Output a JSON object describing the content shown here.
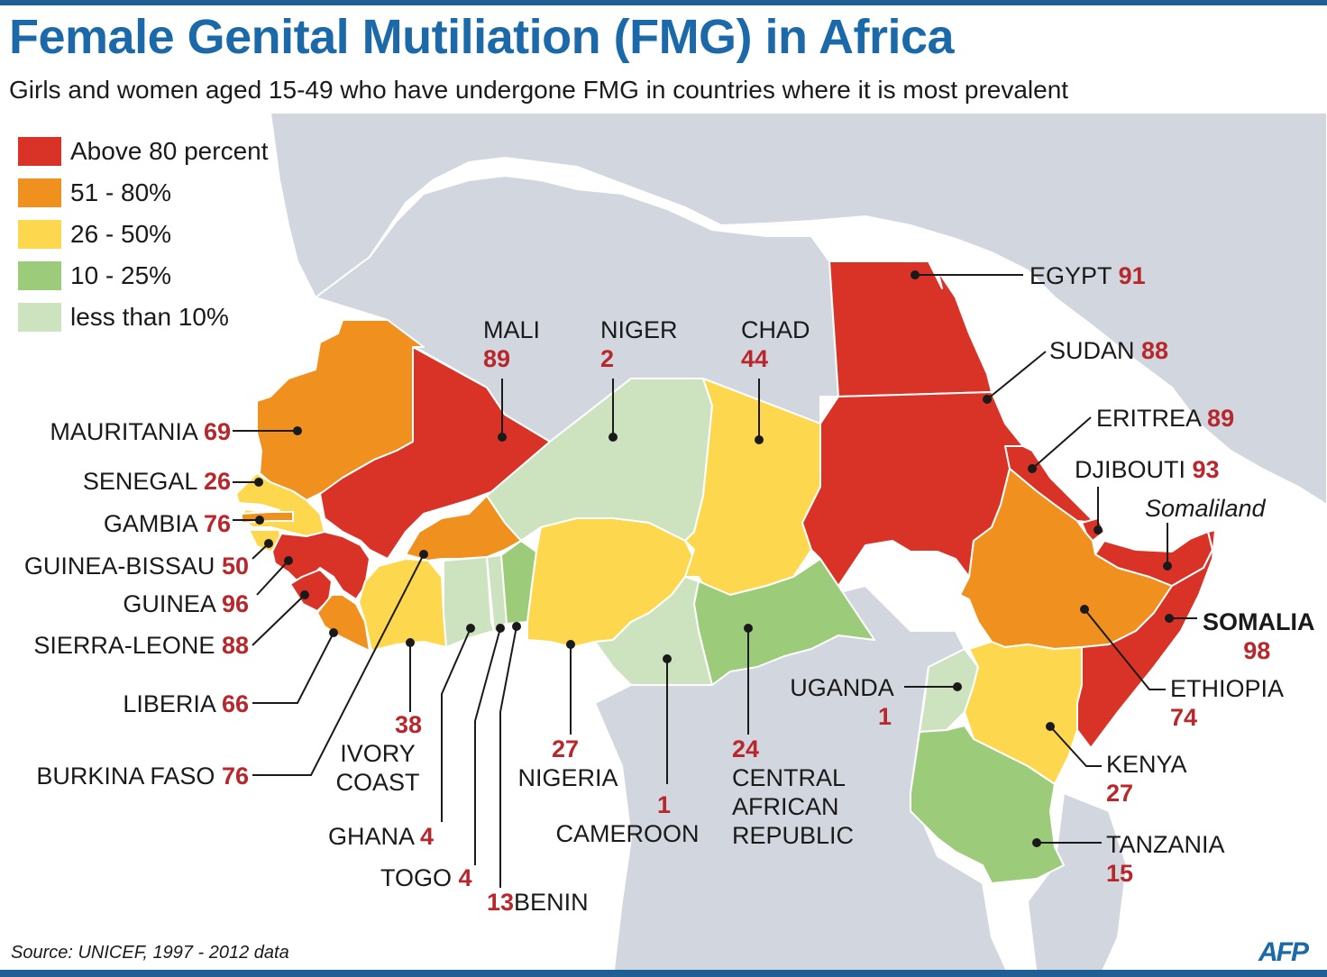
{
  "title": "Female Genital Mutiliation (FMG) in Africa",
  "subtitle": "Girls and women aged 15-49 who have undergone FMG in countries where it is most prevalent",
  "legend": [
    {
      "label": "Above 80 percent",
      "color": "#d93327"
    },
    {
      "label": "51 - 80%",
      "color": "#f0901e"
    },
    {
      "label": "26 - 50%",
      "color": "#fdd84e"
    },
    {
      "label": "10 - 25%",
      "color": "#9ccb7a"
    },
    {
      "label": "less than 10%",
      "color": "#cde3bf"
    }
  ],
  "colors": {
    "ocean": "#ffffff",
    "land": "#d2d7df",
    "border": "#ffffff",
    "value": "#b8272b",
    "title": "#1b69a8"
  },
  "countries": {
    "egypt": {
      "name": "EGYPT",
      "value": "91"
    },
    "sudan": {
      "name": "SUDAN",
      "value": "88"
    },
    "eritrea": {
      "name": "ERITREA",
      "value": "89"
    },
    "djibouti": {
      "name": "DJIBOUTI",
      "value": "93"
    },
    "somaliland": {
      "name": "Somaliland"
    },
    "somalia": {
      "name": "SOMALIA",
      "value": "98"
    },
    "ethiopia": {
      "name": "ETHIOPIA",
      "value": "74"
    },
    "kenya": {
      "name": "KENYA",
      "value": "27"
    },
    "tanzania": {
      "name": "TANZANIA",
      "value": "15"
    },
    "uganda": {
      "name": "UGANDA",
      "value": "1"
    },
    "mali": {
      "name": "MALI",
      "value": "89"
    },
    "niger": {
      "name": "NIGER",
      "value": "2"
    },
    "chad": {
      "name": "CHAD",
      "value": "44"
    },
    "mauritania": {
      "name": "MAURITANIA",
      "value": "69"
    },
    "senegal": {
      "name": "SENEGAL",
      "value": "26"
    },
    "gambia": {
      "name": "GAMBIA",
      "value": "76"
    },
    "guinea_bissau": {
      "name": "GUINEA-BISSAU",
      "value": "50"
    },
    "guinea": {
      "name": "GUINEA",
      "value": "96"
    },
    "sierra_leone": {
      "name": "SIERRA-LEONE",
      "value": "88"
    },
    "liberia": {
      "name": "LIBERIA",
      "value": "66"
    },
    "burkina_faso": {
      "name": "BURKINA FASO",
      "value": "76"
    },
    "ivory_coast": {
      "name_line1": "IVORY",
      "name_line2": "COAST",
      "value": "38"
    },
    "ghana": {
      "name": "GHANA",
      "value": "4"
    },
    "togo": {
      "name": "TOGO",
      "value": "4"
    },
    "benin": {
      "name": "BENIN",
      "value": "13"
    },
    "nigeria": {
      "name": "NIGERIA",
      "value": "27"
    },
    "cameroon": {
      "name": "CAMEROON",
      "value": "1"
    },
    "car": {
      "name_line1": "CENTRAL",
      "name_line2": "AFRICAN",
      "name_line3": "REPUBLIC",
      "value": "24"
    }
  },
  "source": "Source: UNICEF, 1997 - 2012 data",
  "logo": "AFP"
}
